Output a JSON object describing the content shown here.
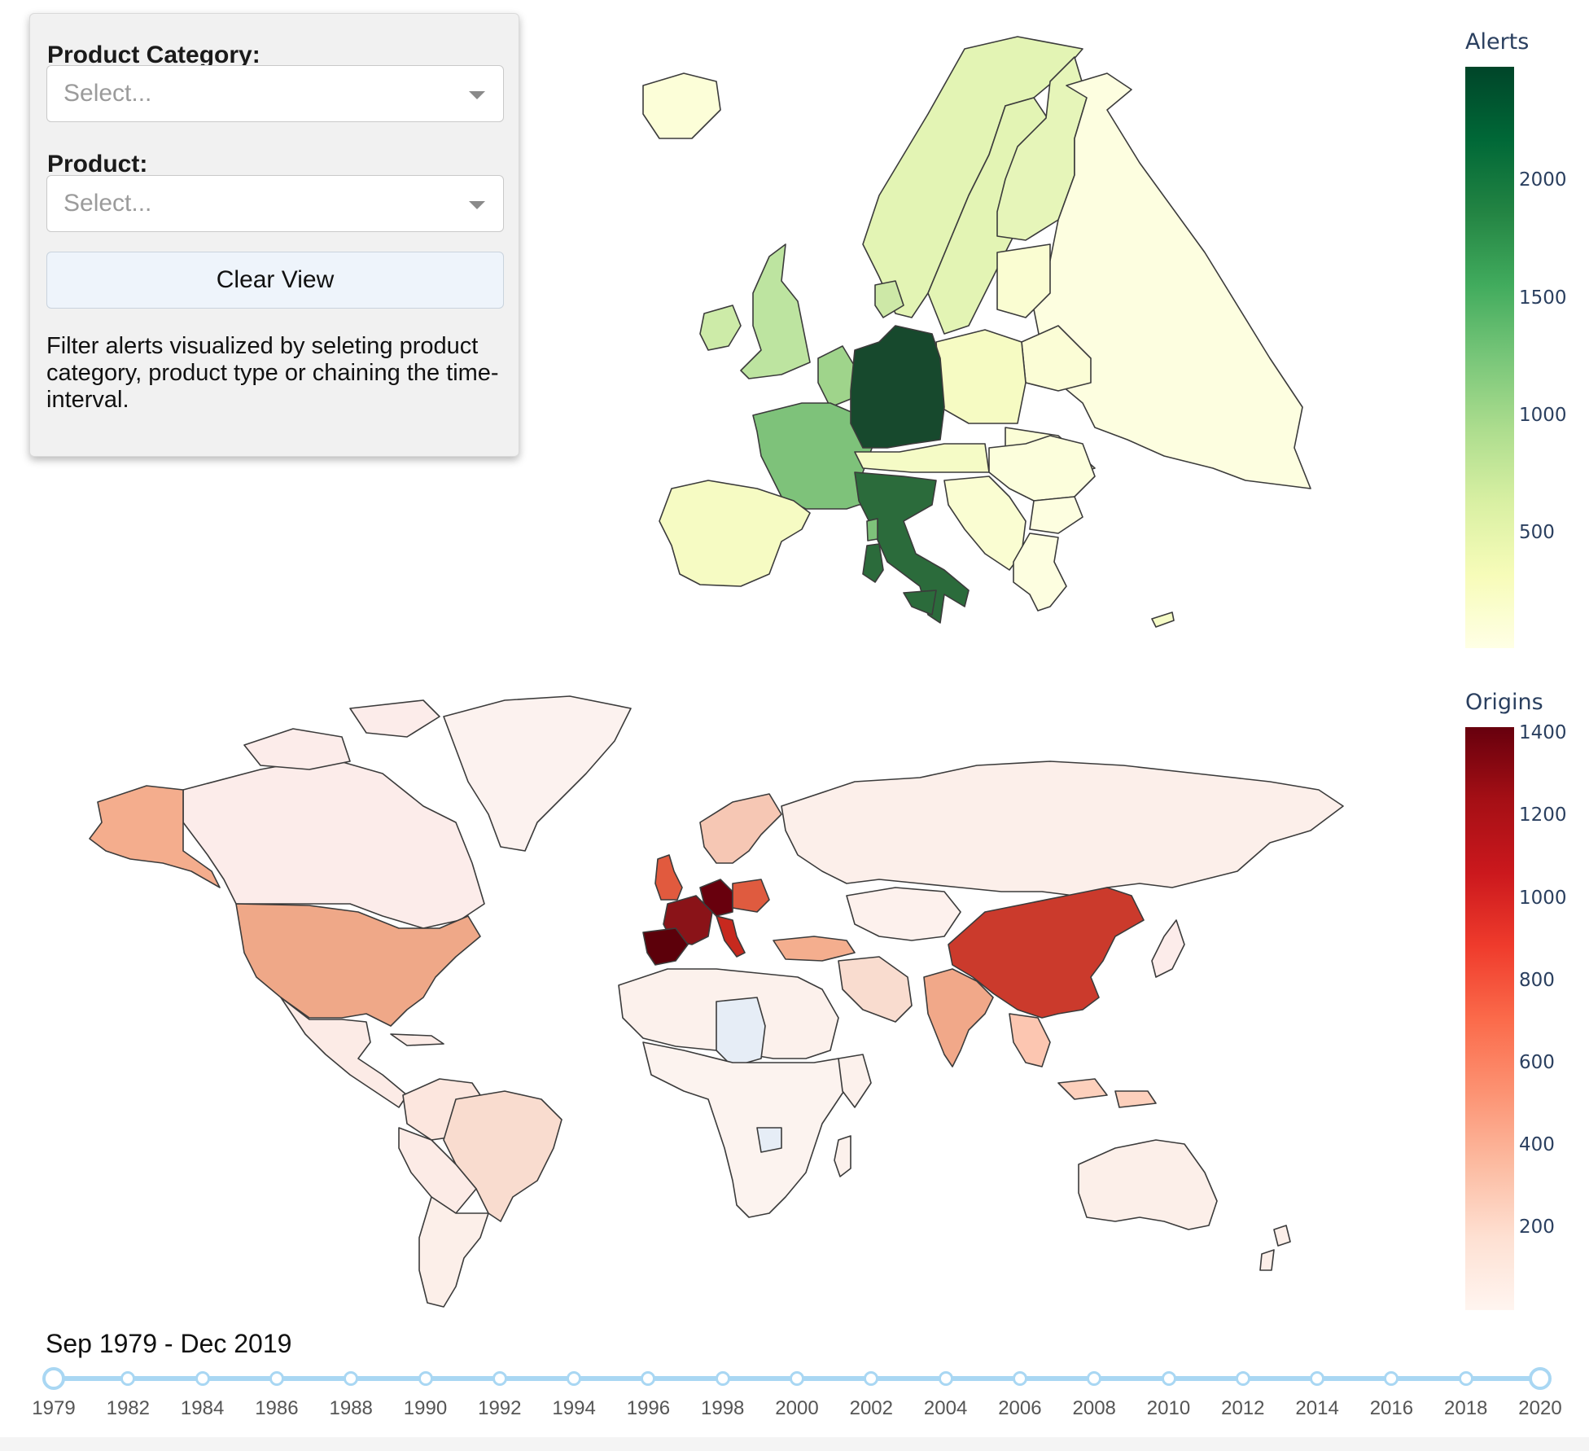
{
  "filters": {
    "category_label": "Product Category:",
    "category_placeholder": "Select...",
    "product_label": "Product:",
    "product_placeholder": "Select...",
    "clear_label": "Clear View",
    "description": "Filter alerts visualized by seleting product category, product type or chaining the time-interval."
  },
  "alerts_map": {
    "colorbar_title": "Alerts",
    "ticks": [
      "2000",
      "1500",
      "1000",
      "500"
    ],
    "colorscale": [
      "#ffffe5",
      "#f7fcb9",
      "#d9f0a3",
      "#addd8e",
      "#78c679",
      "#41ab5d",
      "#238443",
      "#006837",
      "#004529"
    ]
  },
  "origins_map": {
    "colorbar_title": "Origins",
    "ticks": [
      "1400",
      "1200",
      "1000",
      "800",
      "600",
      "400",
      "200"
    ],
    "colorscale": [
      "#fff5f0",
      "#fee0d2",
      "#fcbba1",
      "#fc9272",
      "#fb6a4a",
      "#ef3b2c",
      "#cb181d",
      "#a50f15",
      "#67000d"
    ]
  },
  "timeline": {
    "range_label": "Sep 1979 - Dec 2019",
    "years": [
      "1979",
      "1982",
      "1984",
      "1986",
      "1988",
      "1990",
      "1992",
      "1994",
      "1996",
      "1998",
      "2000",
      "2002",
      "2004",
      "2006",
      "2008",
      "2010",
      "2012",
      "2014",
      "2016",
      "2018",
      "2020"
    ]
  }
}
